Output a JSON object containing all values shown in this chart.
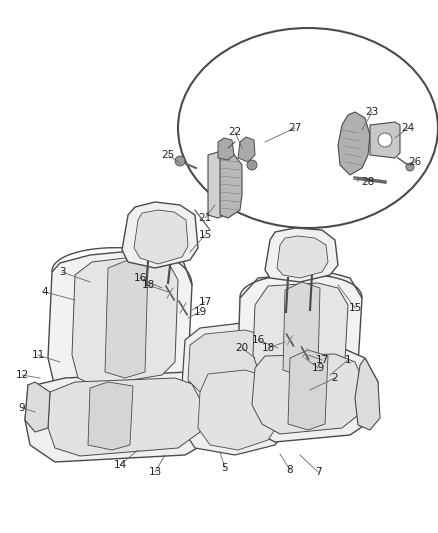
{
  "background_color": "#ffffff",
  "figsize": [
    4.38,
    5.33
  ],
  "dpi": 100,
  "line_color": "#4a4a4a",
  "fill_light": "#f0f0f0",
  "fill_mid": "#e0e0e0",
  "fill_dark": "#c8c8c8",
  "label_fontsize": 7.5,
  "label_color": "#222222"
}
